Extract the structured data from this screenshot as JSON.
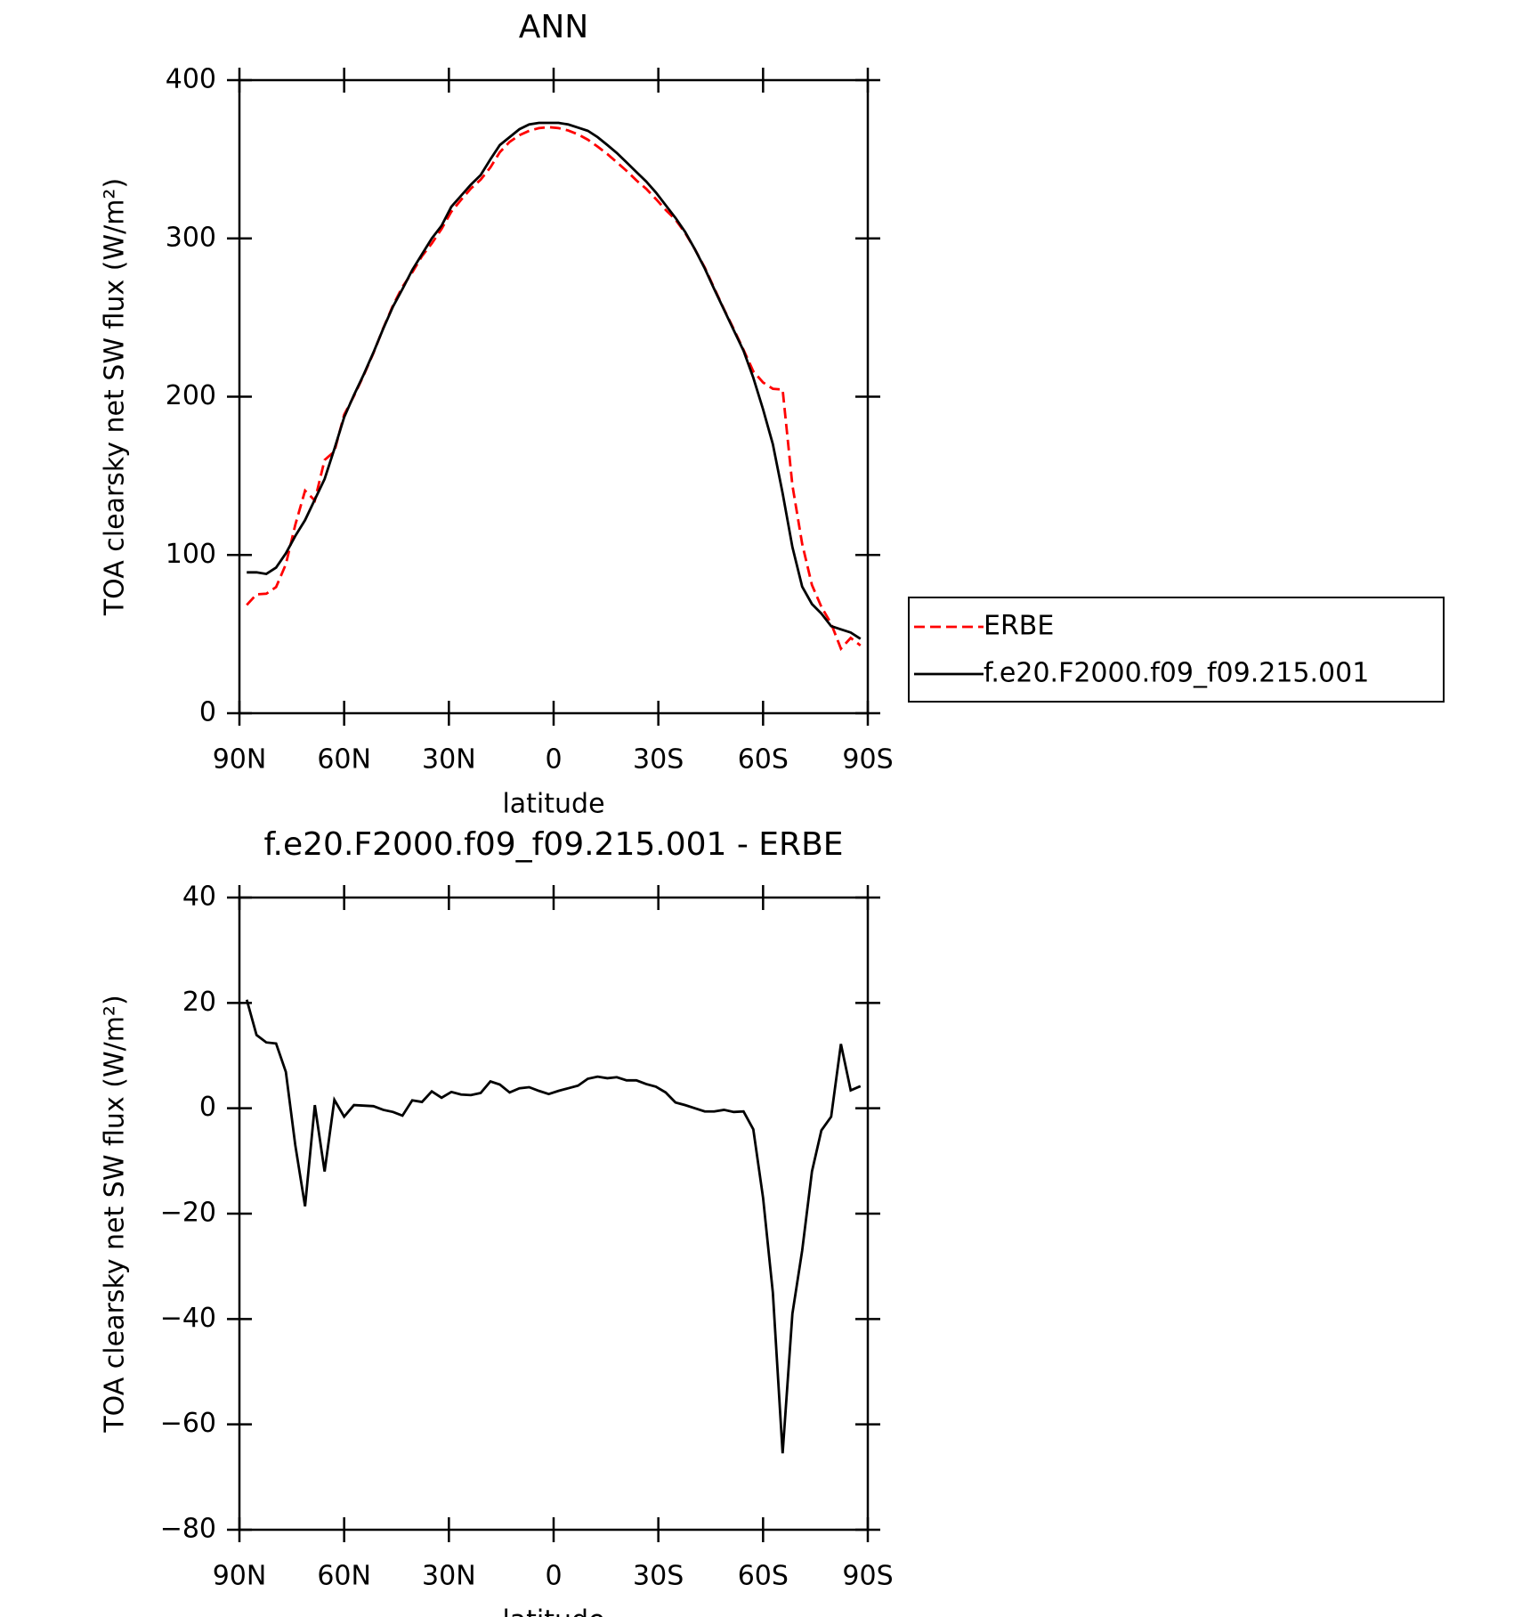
{
  "chart_data": [
    {
      "type": "line",
      "title": "ANN",
      "xlabel": "latitude",
      "ylabel": "TOA clearsky net SW flux (W/m²)",
      "x": [
        87.9,
        85.1,
        82.3,
        79.5,
        76.7,
        74.0,
        71.2,
        68.4,
        65.6,
        62.8,
        60.0,
        57.2,
        54.4,
        51.6,
        48.8,
        46.0,
        43.3,
        40.5,
        37.7,
        34.9,
        32.1,
        29.3,
        26.5,
        23.7,
        20.9,
        18.1,
        15.4,
        12.6,
        9.8,
        7.0,
        4.2,
        1.4,
        -1.4,
        -4.2,
        -7.0,
        -9.8,
        -12.6,
        -15.4,
        -18.1,
        -20.9,
        -23.7,
        -26.5,
        -29.3,
        -32.1,
        -34.9,
        -37.7,
        -40.5,
        -43.3,
        -46.0,
        -48.8,
        -51.6,
        -54.4,
        -57.2,
        -60.0,
        -62.8,
        -65.6,
        -68.4,
        -71.2,
        -74.0,
        -76.7,
        -79.5,
        -82.3,
        -85.1,
        -87.9
      ],
      "series": [
        {
          "name": "ERBE",
          "color": "#ff0000",
          "style": "dashed",
          "values": [
            68.4,
            75.1,
            75.5,
            79.7,
            94.1,
            119,
            140.6,
            134.4,
            160,
            165.4,
            188.6,
            200.4,
            213.5,
            227.6,
            243.3,
            257.7,
            269.4,
            278.5,
            288.8,
            296.8,
            306,
            316.9,
            324.4,
            331.5,
            337.1,
            344.9,
            354.5,
            361,
            365.2,
            368,
            369.7,
            370.3,
            369.7,
            368.2,
            365.7,
            362.4,
            358,
            353.3,
            348.1,
            342.7,
            336.7,
            331.4,
            324.9,
            318,
            311.9,
            303.4,
            293,
            281.6,
            268.6,
            255.3,
            242.7,
            229.6,
            216,
            209,
            205,
            204.5,
            144,
            107,
            81,
            67.2,
            56.6,
            40.8,
            47.6,
            42.8
          ]
        },
        {
          "name": "f.e20.F2000.f09_f09.215.001",
          "color": "#000000",
          "style": "solid",
          "values": [
            89,
            89,
            88,
            92,
            101,
            112,
            122,
            135,
            148,
            167,
            187,
            201,
            214,
            228,
            243,
            257,
            268,
            280,
            290,
            300,
            308,
            320,
            327,
            334,
            340,
            350,
            359,
            364,
            369,
            372,
            373,
            373,
            373,
            372,
            370,
            368,
            364,
            359,
            354,
            348,
            342,
            336,
            329,
            321,
            313,
            304,
            293,
            281,
            268,
            255,
            242,
            229,
            212,
            192,
            170,
            139,
            105,
            80,
            69,
            63,
            55,
            53,
            51,
            47
          ]
        }
      ],
      "xlim": [
        90,
        -90
      ],
      "xticks": [
        {
          "value": 90,
          "label": "90N"
        },
        {
          "value": 60,
          "label": "60N"
        },
        {
          "value": 30,
          "label": "30N"
        },
        0,
        {
          "value": -30,
          "label": "30S"
        },
        {
          "value": -60,
          "label": "60S"
        },
        {
          "value": -90,
          "label": "90S"
        }
      ],
      "ylim": [
        0,
        400
      ],
      "yticks": [
        0,
        100,
        200,
        300,
        400
      ],
      "legend": "right"
    },
    {
      "type": "line",
      "title": "f.e20.F2000.f09_f09.215.001 - ERBE",
      "xlabel": "latitude",
      "ylabel": "TOA clearsky net SW flux (W/m²)",
      "x": [
        87.9,
        85.1,
        82.3,
        79.5,
        76.7,
        74.0,
        71.2,
        68.4,
        65.6,
        62.8,
        60.0,
        57.2,
        54.4,
        51.6,
        48.8,
        46.0,
        43.3,
        40.5,
        37.7,
        34.9,
        32.1,
        29.3,
        26.5,
        23.7,
        20.9,
        18.1,
        15.4,
        12.6,
        9.8,
        7.0,
        4.2,
        1.4,
        -1.4,
        -4.2,
        -7.0,
        -9.8,
        -12.6,
        -15.4,
        -18.1,
        -20.9,
        -23.7,
        -26.5,
        -29.3,
        -32.1,
        -34.9,
        -37.7,
        -40.5,
        -43.3,
        -46.0,
        -48.8,
        -51.6,
        -54.4,
        -57.2,
        -60.0,
        -62.8,
        -65.6,
        -68.4,
        -71.2,
        -74.0,
        -76.7,
        -79.5,
        -82.3,
        -85.1,
        -87.9
      ],
      "color": "#000000",
      "values": [
        20.6,
        13.9,
        12.5,
        12.3,
        6.9,
        -7,
        -18.6,
        0.6,
        -12,
        1.6,
        -1.6,
        0.6,
        0.5,
        0.4,
        -0.3,
        -0.7,
        -1.4,
        1.5,
        1.2,
        3.2,
        2,
        3.1,
        2.6,
        2.5,
        2.9,
        5.1,
        4.5,
        3,
        3.8,
        4,
        3.3,
        2.7,
        3.3,
        3.8,
        4.3,
        5.6,
        6,
        5.7,
        5.9,
        5.3,
        5.3,
        4.6,
        4.1,
        3,
        1.1,
        0.6,
        0,
        -0.6,
        -0.6,
        -0.3,
        -0.7,
        -0.6,
        -4,
        -17,
        -35,
        -65.5,
        -39,
        -27,
        -12,
        -4.2,
        -1.6,
        12.2,
        3.4,
        4.2
      ],
      "xlim": [
        90,
        -90
      ],
      "xticks": [
        {
          "value": 90,
          "label": "90N"
        },
        {
          "value": 60,
          "label": "60N"
        },
        {
          "value": 30,
          "label": "30N"
        },
        0,
        {
          "value": -30,
          "label": "30S"
        },
        {
          "value": -60,
          "label": "60S"
        },
        {
          "value": -90,
          "label": "90S"
        }
      ],
      "ylim": [
        -80,
        40
      ],
      "yticks": [
        {
          "value": -80,
          "label": "−80"
        },
        {
          "value": -60,
          "label": "−60"
        },
        {
          "value": -40,
          "label": "−40"
        },
        {
          "value": -20,
          "label": "−20"
        },
        0,
        20,
        40
      ]
    }
  ]
}
